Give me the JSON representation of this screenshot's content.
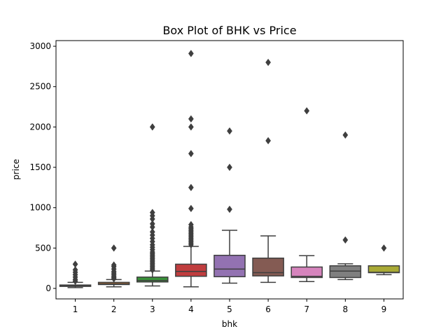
{
  "chart_data": {
    "type": "box",
    "title": "Box Plot of BHK vs Price",
    "xlabel": "bhk",
    "ylabel": "price",
    "ylim": [
      -130,
      3070
    ],
    "yticks": [
      0,
      500,
      1000,
      1500,
      2000,
      2500,
      3000
    ],
    "categories": [
      "1",
      "2",
      "3",
      "4",
      "5",
      "6",
      "7",
      "8",
      "9"
    ],
    "colors": [
      "#3274a1",
      "#e1812c",
      "#3a923a",
      "#c03d3e",
      "#9372b2",
      "#845b53",
      "#d684bd",
      "#7f7f7f",
      "#a9aa35"
    ],
    "median_color": "#3f3f3f",
    "boxes": [
      {
        "category": "1",
        "whislo": 10,
        "q1": 25,
        "med": 35,
        "q3": 42,
        "whishi": 75,
        "fliers": [
          90,
          110,
          140,
          170,
          200,
          230,
          300
        ]
      },
      {
        "category": "2",
        "whislo": 20,
        "q1": 48,
        "med": 58,
        "q3": 75,
        "whishi": 110,
        "fliers": [
          120,
          135,
          150,
          170,
          190,
          210,
          240,
          270,
          290,
          500
        ]
      },
      {
        "category": "3",
        "whislo": 30,
        "q1": 80,
        "med": 98,
        "q3": 140,
        "whishi": 215,
        "fliers": [
          230,
          250,
          270,
          290,
          310,
          330,
          350,
          370,
          390,
          410,
          430,
          450,
          480,
          510,
          540,
          580,
          620,
          660,
          700,
          760,
          800,
          860,
          900,
          940,
          2000
        ]
      },
      {
        "category": "4",
        "whislo": 20,
        "q1": 150,
        "med": 210,
        "q3": 300,
        "whishi": 520,
        "fliers": [
          540,
          560,
          580,
          600,
          620,
          640,
          660,
          680,
          700,
          720,
          740,
          760,
          790,
          990,
          1250,
          1670,
          2000,
          2100,
          2910
        ]
      },
      {
        "category": "5",
        "whislo": 65,
        "q1": 145,
        "med": 240,
        "q3": 410,
        "whishi": 720,
        "fliers": [
          980,
          1500,
          1950
        ]
      },
      {
        "category": "6",
        "whislo": 75,
        "q1": 155,
        "med": 195,
        "q3": 375,
        "whishi": 650,
        "fliers": [
          1830,
          2800
        ]
      },
      {
        "category": "7",
        "whislo": 85,
        "q1": 135,
        "med": 150,
        "q3": 265,
        "whishi": 405,
        "fliers": [
          2200
        ]
      },
      {
        "category": "8",
        "whislo": 110,
        "q1": 135,
        "med": 215,
        "q3": 280,
        "whishi": 305,
        "fliers": [
          600,
          1900
        ]
      },
      {
        "category": "9",
        "whislo": 170,
        "q1": 195,
        "med": 200,
        "q3": 280,
        "whishi": 280,
        "fliers": [
          500
        ]
      }
    ]
  }
}
